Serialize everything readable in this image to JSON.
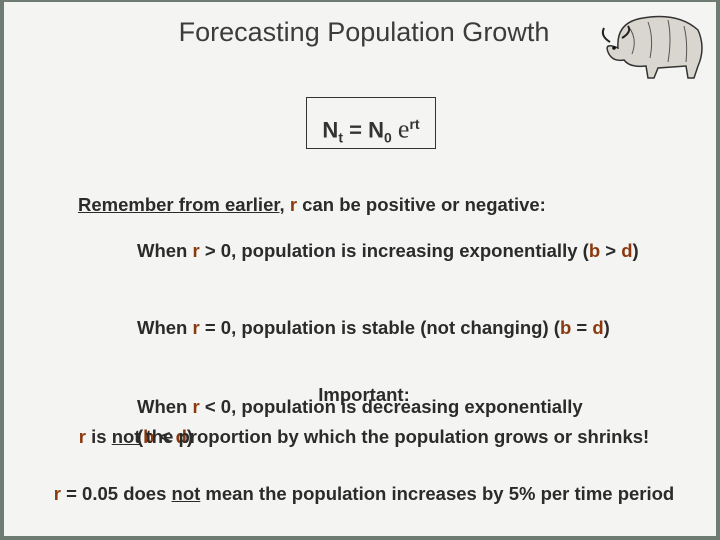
{
  "title": "Forecasting Population Growth",
  "formula": {
    "n": "N",
    "sub_t": "t",
    "equals": "= N",
    "sub_0": "0",
    "e": "e",
    "sup": "rt"
  },
  "intro": {
    "text1": "Remember from earlier,",
    "r": "r",
    "text2": " can be positive or negative:"
  },
  "points": [
    {
      "runs": [
        "When ",
        "r",
        " > 0, population is increasing exponentially (",
        "b",
        " > ",
        "d",
        ")"
      ]
    },
    {
      "runs": [
        "When ",
        "r",
        " = 0, population is stable (not changing) (",
        "b",
        " = ",
        "d",
        ")"
      ]
    },
    {
      "runs": [
        "When ",
        "r",
        " < 0, population is decreasing exponentially",
        "(",
        "b",
        " < ",
        "d",
        ")"
      ]
    }
  ],
  "important": {
    "heading": "Important:",
    "lines": [
      {
        "runs": [
          "r",
          " is ",
          "not",
          " the proportion by which the population grows or shrinks!"
        ]
      },
      {
        "runs": [
          "r",
          " = 0.05 does ",
          "not",
          " mean the population increases by 5% per time period"
        ]
      }
    ]
  }
}
